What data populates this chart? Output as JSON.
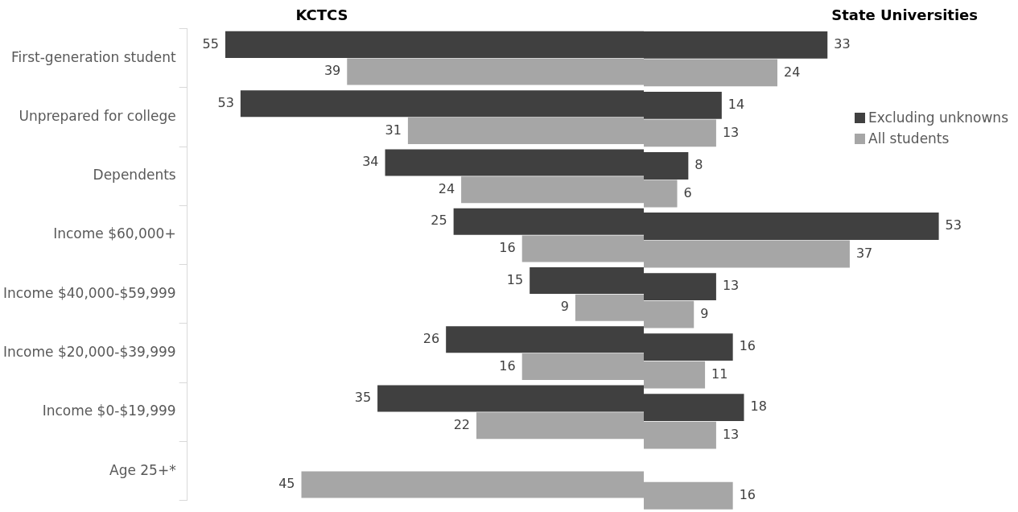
{
  "chart_data": [
    {
      "type": "bar",
      "orientation": "horizontal",
      "title": "KCTCS",
      "categories": [
        "First-generation student",
        "Unprepared for college",
        "Dependents",
        "Income $60,000+",
        "Income $40,000-$59,999",
        "Income $20,000-$39,999",
        "Income $0-$19,999",
        "Age 25+*"
      ],
      "series": [
        {
          "color": "#404040",
          "values": [
            55,
            53,
            34,
            25,
            15,
            26,
            35,
            null
          ]
        },
        {
          "color": "#a6a6a6",
          "values": [
            39,
            31,
            24,
            16,
            9,
            16,
            22,
            45
          ]
        }
      ],
      "xlim": [
        60,
        0
      ],
      "tick_labels": "y",
      "data_labels": true,
      "legend": false
    },
    {
      "type": "bar",
      "orientation": "horizontal",
      "title": "State Universities",
      "categories": [
        null,
        null,
        null,
        null,
        null,
        null,
        null,
        null
      ],
      "series": [
        {
          "name": "Excluding unknowns",
          "color": "#404040",
          "values": [
            33,
            14,
            8,
            53,
            13,
            16,
            18,
            null
          ]
        },
        {
          "name": "All students",
          "color": "#a6a6a6",
          "values": [
            24,
            13,
            6,
            37,
            9,
            11,
            13,
            16
          ]
        }
      ],
      "tick_labels": false,
      "data_labels": true,
      "legend": "top right"
    }
  ]
}
